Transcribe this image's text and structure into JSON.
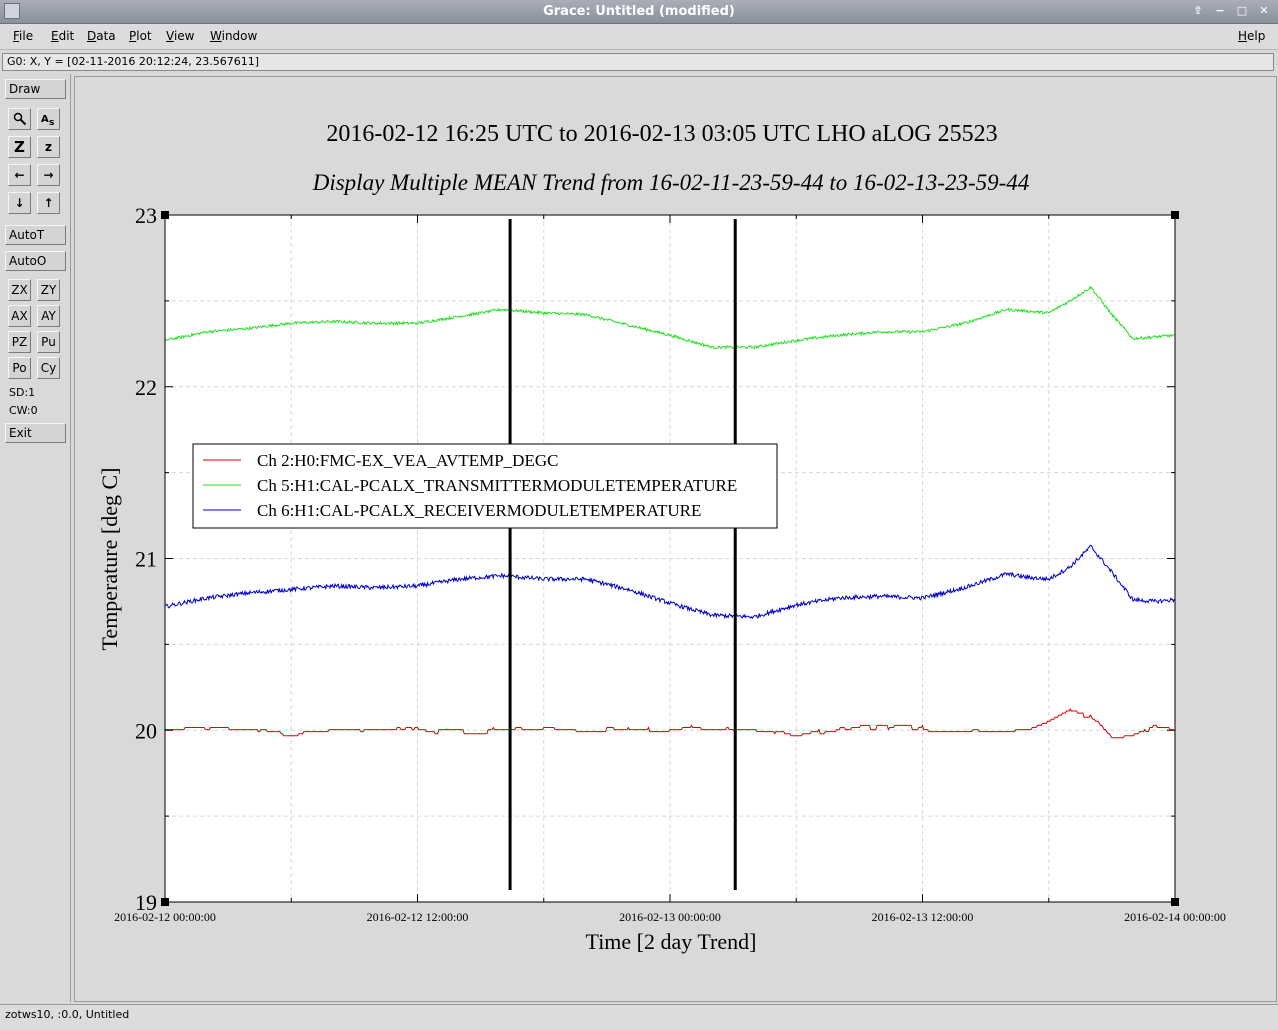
{
  "window": {
    "title": "Grace: Untitled (modified)",
    "controls": [
      "⇧",
      "−",
      "□",
      "✕"
    ]
  },
  "menubar": {
    "items": [
      {
        "label": "File",
        "underline": "F",
        "rest": "ile"
      },
      {
        "label": "Edit",
        "underline": "E",
        "rest": "dit"
      },
      {
        "label": "Data",
        "underline": "D",
        "rest": "ata"
      },
      {
        "label": "Plot",
        "underline": "P",
        "rest": "lot"
      },
      {
        "label": "View",
        "underline": "V",
        "rest": "iew"
      },
      {
        "label": "Window",
        "underline": "W",
        "rest": "indow"
      }
    ],
    "help": {
      "underline": "H",
      "rest": "elp"
    }
  },
  "locator": "G0: X, Y = [02-11-2016 20:12:24, 23.567611]",
  "toolbar": {
    "draw": "Draw",
    "zoom_icon": "magnifier-icon",
    "text_icon": "text-size-icon",
    "z_big": "Z",
    "z_small": "z",
    "left_arrow": "←",
    "right_arrow": "→",
    "down_arrow": "↓",
    "up_arrow": "↑",
    "autot": "AutoT",
    "autoo": "AutoO",
    "zx": "ZX",
    "zy": "ZY",
    "ax": "AX",
    "ay": "AY",
    "pz": "PZ",
    "pu": "Pu",
    "po": "Po",
    "cy": "Cy",
    "sd": "SD:1",
    "cw": "CW:0",
    "exit": "Exit"
  },
  "statusbar": "zotws10, :0.0, Untitled",
  "chart_data": {
    "type": "line",
    "title": "2016-02-12 16:25 UTC to 2016-02-13 03:05 UTC LHO aLOG 25523",
    "subtitle": "Display Multiple MEAN Trend from 16-02-11-23-59-44 to 16-02-13-23-59-44",
    "xlabel": "Time [2 day Trend]",
    "ylabel": "Temperature [deg C]",
    "ylim": [
      19,
      23
    ],
    "yticks": [
      "19",
      "20",
      "21",
      "22",
      "23"
    ],
    "xlim": [
      "2016-02-12 00:00:00",
      "2016-02-14 00:00:00"
    ],
    "xticks": [
      "2016-02-12 00:00:00",
      "2016-02-12 12:00:00",
      "2016-02-13 00:00:00",
      "2016-02-13 12:00:00",
      "2016-02-14 00:00:00"
    ],
    "grid": true,
    "legend_position": "left, middle",
    "markers_hours": [
      16.4,
      27.1
    ],
    "x_hours": [
      0,
      2,
      4,
      6,
      8,
      10,
      12,
      14,
      16,
      18,
      20,
      22,
      24,
      26,
      28,
      30,
      32,
      34,
      36,
      38,
      40,
      41,
      42,
      43,
      44,
      45,
      46,
      47,
      48
    ],
    "series": [
      {
        "name": "Ch 2:H0:FMC-EX_VEA_AVTEMP_DEGC",
        "color": "#e00000",
        "noise": 0.02,
        "values": [
          20.0,
          20.0,
          20.01,
          19.98,
          20.0,
          20.0,
          20.0,
          19.99,
          20.0,
          20.0,
          20.01,
          20.0,
          20.0,
          20.02,
          20.0,
          19.97,
          20.0,
          20.02,
          20.01,
          20.0,
          20.0,
          20.0,
          20.05,
          20.12,
          20.08,
          19.95,
          19.97,
          20.02,
          20.02
        ]
      },
      {
        "name": "Ch 5:H1:CAL-PCALX_TRANSMITTERMODULETEMPERATURE",
        "color": "#22e022",
        "noise": 0.008,
        "values": [
          22.27,
          22.32,
          22.34,
          22.37,
          22.38,
          22.37,
          22.37,
          22.41,
          22.45,
          22.43,
          22.42,
          22.36,
          22.3,
          22.23,
          22.23,
          22.27,
          22.3,
          22.32,
          22.32,
          22.37,
          22.45,
          22.44,
          22.43,
          22.5,
          22.58,
          22.42,
          22.28,
          22.29,
          22.3
        ]
      },
      {
        "name": "Ch 6:H1:CAL-PCALX_RECEIVERMODULETEMPERATURE",
        "color": "#0000cc",
        "noise": 0.012,
        "values": [
          20.72,
          20.77,
          20.8,
          20.82,
          20.84,
          20.83,
          20.84,
          20.88,
          20.9,
          20.88,
          20.88,
          20.82,
          20.74,
          20.67,
          20.66,
          20.73,
          20.77,
          20.78,
          20.77,
          20.83,
          20.91,
          20.89,
          20.88,
          20.95,
          21.07,
          20.92,
          20.76,
          20.75,
          20.76
        ]
      }
    ]
  }
}
